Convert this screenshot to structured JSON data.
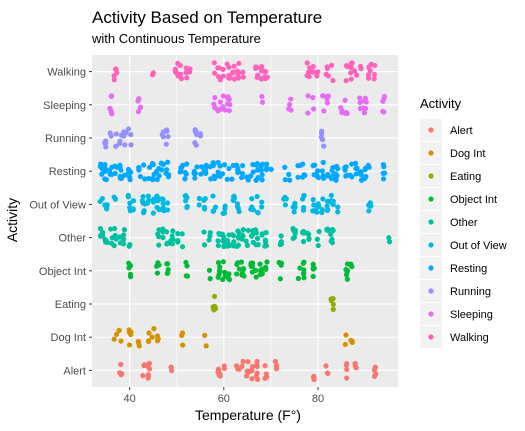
{
  "chart_data": {
    "type": "scatter",
    "title": "Activity Based on Temperature",
    "subtitle": "with Continuous Temperature",
    "xlabel": "Temperature (F°)",
    "ylabel": "Activity",
    "xlim": [
      32,
      97
    ],
    "x_ticks": [
      "40",
      "60",
      "80"
    ],
    "x_tick_values": [
      40,
      60,
      80
    ],
    "categories": [
      "Alert",
      "Dog Int",
      "Eating",
      "Object Int",
      "Other",
      "Out of View",
      "Resting",
      "Running",
      "Sleeping",
      "Walking"
    ],
    "legend": {
      "title": "Activity",
      "position": "right"
    },
    "grid": true,
    "series": [
      {
        "name": "Alert",
        "color": "#F8766D",
        "x": [
          38,
          43,
          44,
          49,
          59,
          60,
          63,
          64,
          65,
          66,
          67,
          69,
          71,
          79,
          82,
          86,
          88,
          92
        ]
      },
      {
        "name": "Dog Int",
        "color": "#D39200",
        "x": [
          37,
          38,
          40,
          42,
          44,
          45,
          46,
          51,
          56,
          86,
          87
        ]
      },
      {
        "name": "Eating",
        "color": "#93AA00",
        "x": [
          58,
          83
        ]
      },
      {
        "name": "Object Int",
        "color": "#00BA38",
        "x": [
          40,
          46,
          48,
          52,
          57,
          59,
          60,
          61,
          63,
          64,
          66,
          67,
          68,
          69,
          72,
          76,
          77,
          79,
          86,
          87
        ]
      },
      {
        "name": "Other",
        "color": "#00C19F",
        "x": [
          34,
          35,
          36,
          37,
          38,
          39,
          40,
          46,
          47,
          48,
          49,
          50,
          51,
          56,
          57,
          59,
          60,
          61,
          62,
          63,
          64,
          65,
          66,
          67,
          68,
          69,
          72,
          75,
          77,
          78,
          80,
          82,
          83,
          95
        ]
      },
      {
        "name": "Out of View",
        "color": "#00B9E3",
        "x": [
          34,
          35,
          37,
          40,
          41,
          43,
          44,
          45,
          46,
          47,
          48,
          52,
          55,
          56,
          58,
          60,
          62,
          63,
          66,
          67,
          68,
          73,
          75,
          77,
          79,
          80,
          81,
          82,
          83,
          84,
          91
        ]
      },
      {
        "name": "Resting",
        "color": "#00A9FF",
        "x": [
          34,
          35,
          36,
          37,
          38,
          39,
          40,
          42,
          43,
          44,
          45,
          46,
          47,
          48,
          51,
          52,
          54,
          55,
          56,
          57,
          58,
          59,
          60,
          61,
          62,
          63,
          64,
          65,
          66,
          67,
          68,
          69,
          70,
          73,
          74,
          76,
          77,
          79,
          80,
          81,
          82,
          83,
          84,
          86,
          87,
          88,
          89,
          90,
          91,
          94
        ]
      },
      {
        "name": "Running",
        "color": "#9590FF",
        "x": [
          35,
          36,
          37,
          38,
          39,
          40,
          47,
          48,
          54,
          55,
          81
        ]
      },
      {
        "name": "Sleeping",
        "color": "#E76BF3",
        "x": [
          36,
          42,
          58,
          59,
          60,
          61,
          68,
          74,
          78,
          79,
          81,
          82,
          85,
          86,
          89,
          90,
          94
        ]
      },
      {
        "name": "Walking",
        "color": "#FF62BC",
        "x": [
          37,
          45,
          50,
          51,
          52,
          53,
          58,
          59,
          60,
          61,
          62,
          63,
          64,
          67,
          68,
          69,
          78,
          79,
          80,
          82,
          83,
          86,
          87,
          88,
          89,
          91,
          92
        ]
      }
    ]
  }
}
